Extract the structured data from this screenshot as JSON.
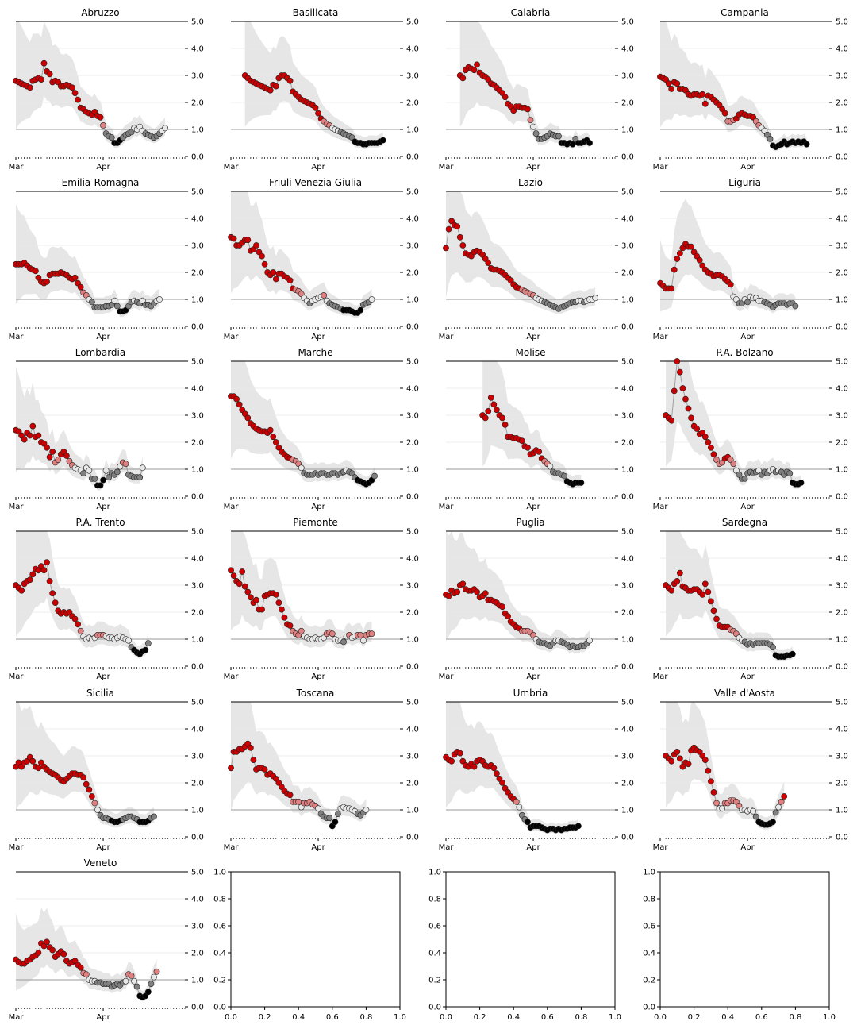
{
  "chart_data": {
    "type": "scatter",
    "y_ticks": [
      "0.0",
      "1.0",
      "2.0",
      "3.0",
      "4.0",
      "5.0"
    ],
    "x_ticks": [
      "Mar",
      "Apr"
    ],
    "ylim": [
      0,
      5
    ],
    "threshold_line": 1.0,
    "colors": {
      "above": "#cc0000",
      "mid": "#e08080",
      "near": "#e8e8e8",
      "below": "#808080",
      "low": "#000000",
      "band": "#e6e6e6"
    },
    "panels": [
      {
        "name": "Abruzzo",
        "start": 0,
        "values": [
          2.8,
          2.75,
          2.7,
          2.65,
          2.6,
          2.55,
          2.8,
          2.85,
          2.9,
          2.85,
          3.45,
          3.15,
          3.05,
          2.75,
          2.8,
          2.75,
          2.6,
          2.6,
          2.65,
          2.6,
          2.55,
          2.35,
          2.1,
          1.8,
          1.75,
          1.65,
          1.6,
          1.55,
          1.65,
          1.5,
          1.45,
          1.15,
          0.85,
          0.75,
          0.7,
          0.5,
          0.5,
          0.6,
          0.7,
          0.8,
          0.85,
          0.9,
          1.05,
          1.0,
          1.1,
          0.95,
          0.85,
          0.8,
          0.75,
          0.7,
          0.75,
          0.85,
          0.95,
          1.05
        ]
      },
      {
        "name": "Basilicata",
        "start": 5,
        "values": [
          3.0,
          2.9,
          2.8,
          2.75,
          2.7,
          2.65,
          2.6,
          2.55,
          2.5,
          2.45,
          2.65,
          2.6,
          2.9,
          3.0,
          3.0,
          2.9,
          2.8,
          2.4,
          2.3,
          2.2,
          2.1,
          2.05,
          2.0,
          1.95,
          1.9,
          1.8,
          1.6,
          1.4,
          1.3,
          1.2,
          1.15,
          1.05,
          1.0,
          0.95,
          0.9,
          0.85,
          0.8,
          0.75,
          0.7,
          0.55,
          0.5,
          0.5,
          0.45,
          0.45,
          0.5,
          0.5,
          0.5,
          0.5,
          0.55,
          0.6
        ]
      },
      {
        "name": "Calabria",
        "start": 5,
        "values": [
          3.0,
          2.9,
          3.2,
          3.3,
          3.25,
          3.2,
          3.4,
          3.1,
          3.0,
          2.95,
          2.85,
          2.7,
          2.65,
          2.55,
          2.45,
          2.35,
          2.2,
          1.95,
          1.85,
          1.7,
          1.85,
          1.85,
          1.8,
          1.8,
          1.75,
          1.35,
          1.1,
          0.85,
          0.65,
          0.65,
          0.7,
          0.75,
          0.85,
          0.8,
          0.75,
          0.75,
          0.5,
          0.5,
          0.45,
          0.5,
          0.45,
          0.65,
          0.5,
          0.5,
          0.55,
          0.6,
          0.5
        ]
      },
      {
        "name": "Campania",
        "start": 0,
        "values": [
          2.95,
          2.9,
          2.85,
          2.7,
          2.5,
          2.75,
          2.7,
          2.5,
          2.5,
          2.45,
          2.3,
          2.25,
          2.3,
          2.3,
          2.25,
          2.3,
          1.95,
          2.25,
          2.2,
          2.1,
          2.0,
          1.9,
          1.75,
          1.6,
          1.3,
          1.3,
          1.35,
          1.4,
          1.55,
          1.6,
          1.55,
          1.5,
          1.5,
          1.45,
          1.3,
          1.15,
          1.05,
          0.95,
          0.8,
          0.65,
          0.4,
          0.35,
          0.4,
          0.45,
          0.55,
          0.45,
          0.5,
          0.55,
          0.5,
          0.55,
          0.5,
          0.55,
          0.45
        ]
      },
      {
        "name": "Emilia-Romagna",
        "start": 0,
        "values": [
          2.3,
          2.3,
          2.3,
          2.35,
          2.25,
          2.15,
          2.1,
          2.05,
          1.8,
          1.65,
          1.6,
          1.65,
          1.9,
          1.95,
          1.95,
          1.95,
          2.0,
          1.95,
          1.9,
          1.8,
          1.75,
          1.8,
          1.6,
          1.45,
          1.25,
          1.15,
          1.0,
          0.9,
          0.7,
          0.7,
          0.7,
          0.7,
          0.75,
          0.75,
          0.8,
          0.95,
          0.75,
          0.55,
          0.55,
          0.6,
          0.75,
          0.9,
          0.95,
          0.9,
          0.85,
          0.95,
          0.8,
          0.8,
          0.75,
          0.85,
          0.95,
          1.0
        ]
      },
      {
        "name": "Friuli Venezia Giulia",
        "start": 0,
        "values": [
          3.3,
          3.25,
          3.0,
          3.0,
          3.1,
          3.2,
          3.2,
          2.8,
          2.85,
          3.0,
          2.75,
          2.6,
          2.3,
          2.0,
          1.9,
          2.0,
          1.75,
          1.95,
          1.95,
          1.85,
          1.8,
          1.7,
          1.4,
          1.35,
          1.3,
          1.2,
          1.05,
          0.95,
          0.85,
          0.95,
          1.0,
          1.05,
          1.1,
          1.15,
          0.95,
          0.85,
          0.8,
          0.75,
          0.7,
          0.65,
          0.6,
          0.6,
          0.6,
          0.55,
          0.5,
          0.5,
          0.6,
          0.8,
          0.85,
          0.9,
          1.0
        ]
      },
      {
        "name": "Lazio",
        "start": 0,
        "values": [
          2.9,
          3.6,
          3.9,
          3.75,
          3.7,
          3.3,
          3.0,
          2.7,
          2.65,
          2.6,
          2.75,
          2.8,
          2.75,
          2.65,
          2.5,
          2.35,
          2.15,
          2.1,
          2.1,
          2.05,
          2.0,
          1.9,
          1.8,
          1.7,
          1.55,
          1.45,
          1.4,
          1.35,
          1.3,
          1.25,
          1.2,
          1.15,
          1.05,
          1.0,
          0.95,
          0.9,
          0.85,
          0.8,
          0.75,
          0.7,
          0.65,
          0.7,
          0.75,
          0.8,
          0.85,
          0.9,
          0.9,
          0.95,
          0.95,
          0.9,
          0.95,
          1.0,
          1.0,
          1.05
        ]
      },
      {
        "name": "Liguria",
        "start": 0,
        "values": [
          1.6,
          1.5,
          1.4,
          1.4,
          1.4,
          2.1,
          2.5,
          2.7,
          2.9,
          3.05,
          2.95,
          2.95,
          2.75,
          2.6,
          2.45,
          2.25,
          2.1,
          2.0,
          1.95,
          1.85,
          1.9,
          1.9,
          1.85,
          1.75,
          1.65,
          1.55,
          1.1,
          1.0,
          0.85,
          0.85,
          1.0,
          0.9,
          1.1,
          1.05,
          1.05,
          0.95,
          0.95,
          0.9,
          0.85,
          0.8,
          0.7,
          0.8,
          0.85,
          0.85,
          0.85,
          0.8,
          0.85,
          0.85,
          0.75
        ]
      },
      {
        "name": "Lombardia",
        "start": 0,
        "values": [
          2.45,
          2.4,
          2.25,
          2.1,
          2.35,
          2.25,
          2.6,
          2.2,
          2.25,
          2.0,
          1.95,
          1.8,
          1.45,
          1.65,
          1.25,
          1.35,
          1.55,
          1.65,
          1.5,
          1.3,
          1.15,
          1.05,
          1.0,
          0.95,
          0.85,
          1.05,
          0.95,
          0.65,
          0.65,
          0.4,
          0.4,
          0.6,
          0.95,
          0.7,
          0.85,
          0.8,
          0.9,
          1.1,
          1.25,
          1.2,
          0.8,
          0.75,
          0.7,
          0.7,
          0.7,
          1.05
        ]
      },
      {
        "name": "Marche",
        "start": 0,
        "values": [
          3.7,
          3.7,
          3.6,
          3.4,
          3.2,
          3.05,
          2.9,
          2.7,
          2.6,
          2.5,
          2.45,
          2.4,
          2.4,
          2.35,
          2.45,
          2.2,
          2.0,
          1.8,
          1.65,
          1.55,
          1.45,
          1.4,
          1.35,
          1.3,
          1.2,
          1.05,
          0.85,
          0.8,
          0.8,
          0.8,
          0.85,
          0.8,
          0.85,
          0.85,
          0.8,
          0.8,
          0.85,
          0.85,
          0.8,
          0.85,
          0.9,
          0.95,
          0.9,
          0.85,
          0.7,
          0.6,
          0.55,
          0.5,
          0.45,
          0.5,
          0.6,
          0.75
        ]
      },
      {
        "name": "Molise",
        "start": 13,
        "values": [
          3.0,
          2.9,
          3.15,
          3.65,
          3.4,
          3.2,
          3.0,
          2.9,
          2.65,
          2.2,
          2.2,
          2.15,
          2.15,
          2.1,
          2.05,
          1.85,
          1.8,
          1.55,
          1.6,
          1.7,
          1.65,
          1.4,
          1.3,
          1.2,
          1.1,
          0.9,
          0.85,
          0.85,
          0.8,
          0.75,
          0.55,
          0.5,
          0.45,
          0.5,
          0.5,
          0.5
        ]
      },
      {
        "name": "P.A. Bolzano",
        "start": 2,
        "values": [
          3.0,
          2.9,
          2.8,
          3.9,
          5.0,
          4.6,
          4.0,
          3.6,
          3.25,
          2.9,
          2.6,
          2.5,
          2.3,
          2.35,
          2.2,
          2.0,
          1.8,
          1.55,
          1.35,
          1.2,
          1.25,
          1.4,
          1.45,
          1.35,
          1.2,
          0.95,
          0.8,
          0.65,
          0.65,
          0.85,
          0.9,
          0.85,
          0.9,
          0.95,
          0.8,
          0.9,
          0.85,
          0.95,
          1.0,
          0.9,
          0.95,
          0.9,
          0.8,
          0.9,
          0.85,
          0.5,
          0.45,
          0.45,
          0.5
        ]
      },
      {
        "name": "P.A. Trento",
        "start": 0,
        "values": [
          3.0,
          2.9,
          2.8,
          3.05,
          3.15,
          3.2,
          3.4,
          3.6,
          3.55,
          3.7,
          3.55,
          3.85,
          3.15,
          2.7,
          2.35,
          2.05,
          1.95,
          2.0,
          1.95,
          2.0,
          1.85,
          1.75,
          1.55,
          1.3,
          1.1,
          1.0,
          1.05,
          1.0,
          1.05,
          1.15,
          1.15,
          1.15,
          1.1,
          1.05,
          1.05,
          1.0,
          1.05,
          1.1,
          1.05,
          1.0,
          0.95,
          0.7,
          0.6,
          0.5,
          0.45,
          0.55,
          0.6,
          0.85
        ]
      },
      {
        "name": "Piemonte",
        "start": 0,
        "values": [
          3.55,
          3.35,
          3.15,
          3.05,
          3.5,
          2.95,
          2.75,
          2.55,
          2.35,
          2.45,
          2.1,
          2.1,
          2.6,
          2.65,
          2.7,
          2.7,
          2.65,
          2.35,
          2.1,
          1.8,
          1.55,
          1.5,
          1.3,
          1.2,
          1.15,
          1.3,
          1.1,
          1.05,
          1.0,
          1.0,
          1.05,
          1.0,
          1.0,
          1.05,
          1.2,
          1.25,
          1.2,
          1.0,
          0.95,
          0.95,
          0.9,
          1.1,
          1.15,
          1.05,
          1.1,
          1.15,
          1.15,
          0.95,
          1.15,
          1.2,
          1.2
        ]
      },
      {
        "name": "Puglia",
        "start": 0,
        "values": [
          2.65,
          2.6,
          2.8,
          2.7,
          2.75,
          3.0,
          3.05,
          2.85,
          2.8,
          2.8,
          2.85,
          2.75,
          2.55,
          2.6,
          2.7,
          2.45,
          2.45,
          2.4,
          2.35,
          2.25,
          2.2,
          1.95,
          1.85,
          1.65,
          1.55,
          1.45,
          1.4,
          1.3,
          1.3,
          1.3,
          1.25,
          1.15,
          1.0,
          0.9,
          0.85,
          0.85,
          0.8,
          0.75,
          0.85,
          0.95,
          0.95,
          0.9,
          0.85,
          0.8,
          0.7,
          0.75,
          0.7,
          0.7,
          0.75,
          0.75,
          0.85,
          0.95
        ]
      },
      {
        "name": "Sardegna",
        "start": 2,
        "values": [
          3.0,
          2.9,
          2.8,
          3.05,
          3.15,
          3.45,
          2.95,
          2.9,
          2.8,
          2.8,
          2.85,
          2.85,
          2.75,
          2.65,
          3.05,
          2.75,
          2.4,
          2.05,
          1.75,
          1.5,
          1.45,
          1.45,
          1.45,
          1.35,
          1.3,
          1.2,
          1.05,
          0.95,
          0.9,
          0.8,
          0.85,
          0.8,
          0.85,
          0.85,
          0.85,
          0.85,
          0.85,
          0.8,
          0.7,
          0.4,
          0.35,
          0.35,
          0.35,
          0.4,
          0.4,
          0.45
        ]
      },
      {
        "name": "Sicilia",
        "start": 0,
        "values": [
          2.6,
          2.75,
          2.6,
          2.75,
          2.8,
          2.95,
          2.8,
          2.6,
          2.55,
          2.75,
          2.6,
          2.5,
          2.4,
          2.35,
          2.3,
          2.2,
          2.1,
          2.05,
          2.15,
          2.25,
          2.35,
          2.35,
          2.3,
          2.3,
          2.2,
          1.95,
          1.75,
          1.5,
          1.25,
          1.0,
          0.8,
          0.7,
          0.7,
          0.65,
          0.6,
          0.55,
          0.55,
          0.6,
          0.65,
          0.7,
          0.75,
          0.75,
          0.7,
          0.65,
          0.55,
          0.55,
          0.55,
          0.6,
          0.7,
          0.75
        ]
      },
      {
        "name": "Toscana",
        "start": 0,
        "values": [
          2.55,
          3.15,
          3.15,
          3.25,
          3.25,
          3.35,
          3.45,
          3.3,
          2.85,
          2.5,
          2.55,
          2.55,
          2.5,
          2.3,
          2.35,
          2.25,
          2.15,
          2.0,
          1.85,
          1.7,
          1.6,
          1.55,
          1.3,
          1.3,
          1.3,
          1.1,
          1.25,
          1.25,
          1.3,
          1.2,
          1.15,
          1.05,
          0.85,
          0.75,
          0.7,
          0.7,
          0.4,
          0.55,
          0.85,
          1.05,
          1.1,
          1.05,
          1.05,
          1.0,
          0.95,
          0.85,
          0.8,
          0.9,
          1.0
        ]
      },
      {
        "name": "Umbria",
        "start": 0,
        "values": [
          2.95,
          2.85,
          2.8,
          3.05,
          3.15,
          3.1,
          2.8,
          2.65,
          2.6,
          2.7,
          2.6,
          2.8,
          2.85,
          2.8,
          2.65,
          2.6,
          2.65,
          2.55,
          2.35,
          2.15,
          2.0,
          1.8,
          1.65,
          1.5,
          1.4,
          1.3,
          1.1,
          0.8,
          0.65,
          0.55,
          0.35,
          0.4,
          0.4,
          0.4,
          0.35,
          0.3,
          0.25,
          0.3,
          0.3,
          0.25,
          0.3,
          0.25,
          0.3,
          0.3,
          0.35,
          0.35,
          0.35,
          0.4
        ]
      },
      {
        "name": "Valle d'Aosta",
        "start": 2,
        "values": [
          3.0,
          2.9,
          2.8,
          3.05,
          3.15,
          2.9,
          2.6,
          2.75,
          2.7,
          3.2,
          3.3,
          3.2,
          3.15,
          3.0,
          2.85,
          2.45,
          2.05,
          1.65,
          1.25,
          1.05,
          1.05,
          1.25,
          1.25,
          1.35,
          1.35,
          1.3,
          1.15,
          1.0,
          1.0,
          0.95,
          1.0,
          0.95,
          0.75,
          0.55,
          0.5,
          0.45,
          0.45,
          0.5,
          0.55,
          0.9,
          1.1,
          1.3,
          1.5
        ]
      },
      {
        "name": "Veneto",
        "start": 0,
        "values": [
          1.75,
          1.65,
          1.6,
          1.6,
          1.7,
          1.75,
          1.85,
          1.9,
          2.0,
          2.35,
          2.25,
          2.4,
          2.2,
          2.1,
          1.85,
          1.95,
          2.05,
          1.95,
          1.7,
          1.6,
          1.65,
          1.7,
          1.55,
          1.45,
          1.25,
          1.2,
          1.0,
          0.95,
          0.95,
          0.9,
          0.9,
          0.85,
          0.85,
          0.85,
          0.75,
          0.8,
          0.85,
          0.8,
          0.9,
          0.95,
          1.2,
          1.15,
          0.95,
          0.75,
          0.4,
          0.35,
          0.4,
          0.55,
          0.85,
          1.1,
          1.3
        ]
      }
    ],
    "empty_axes": {
      "ticks": [
        "0.0",
        "0.2",
        "0.4",
        "0.6",
        "0.8",
        "1.0"
      ],
      "count": 3
    }
  }
}
